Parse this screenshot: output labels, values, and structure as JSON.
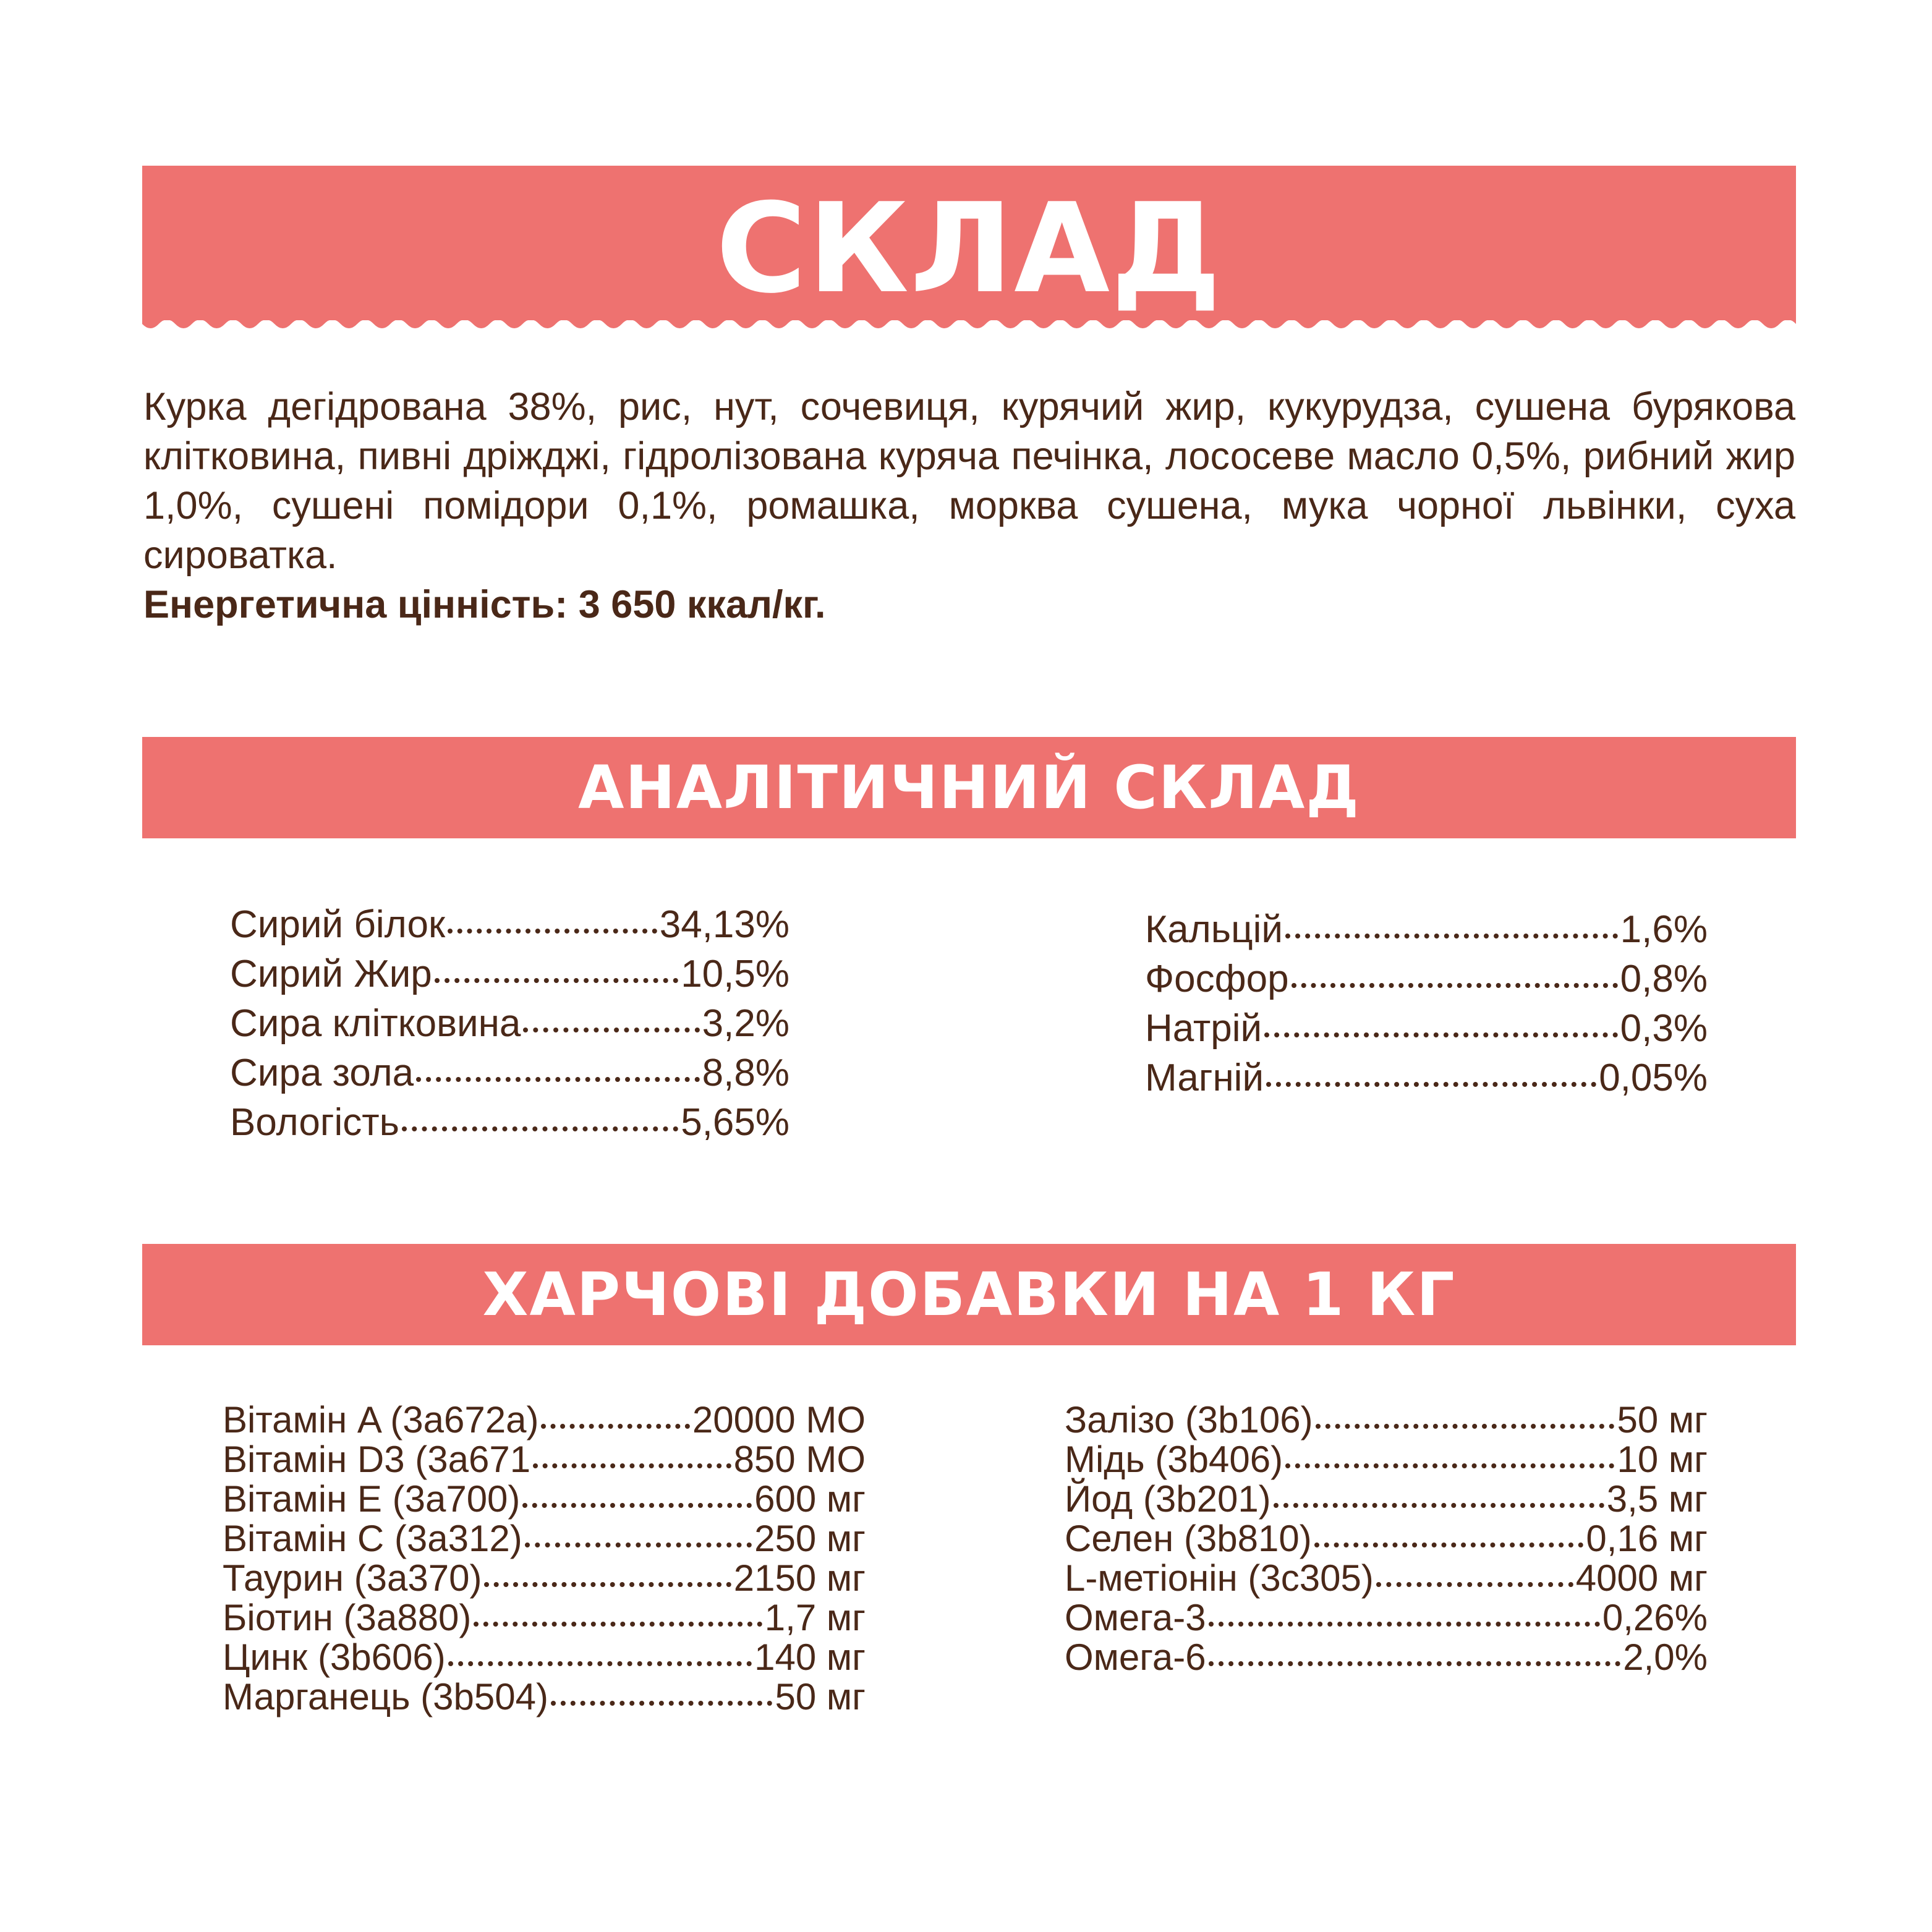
{
  "colors": {
    "accent": "#ee7270",
    "text": "#4a2818"
  },
  "composition": {
    "title": "СКЛАД",
    "ingredients": "Курка дегідрована 38%, рис, нут, сочевиця, курячий жир, кукурудза, сушена бурякова клітковина, пивні дріжджі, гідролізована куряча печінка, лососеве масло 0,5%, рибний жир 1,0%, сушені помідори 0,1%, ромашка, морква сушена, мука чорної львінки, суха сироватка.",
    "energy": "Енергетична цінність: 3 650 ккал/кг."
  },
  "analytical": {
    "title": "АНАЛІТИЧНИЙ СКЛАД",
    "left": [
      {
        "label": "Сирий білок",
        "value": "34,13%"
      },
      {
        "label": "Сирий Жир",
        "value": "10,5%"
      },
      {
        "label": "Сира клітковина",
        "value": "3,2%"
      },
      {
        "label": "Сира зола",
        "value": "8,8%"
      },
      {
        "label": "Вологість",
        "value": "5,65%"
      }
    ],
    "right": [
      {
        "label": "Кальцій",
        "value": "1,6%"
      },
      {
        "label": "Фосфор",
        "value": "0,8%"
      },
      {
        "label": "Натрій",
        "value": "0,3%"
      },
      {
        "label": "Магній",
        "value": "0,05%"
      }
    ]
  },
  "supplements": {
    "title": "ХАРЧОВІ ДОБАВКИ НА 1 КГ",
    "left": [
      {
        "label": "Вітамін A (3a672a)",
        "value": "20000 МО"
      },
      {
        "label": "Вітамін D3 (3a671",
        "value": "850 МО"
      },
      {
        "label": "Вітамін E (3a700)",
        "value": "600 мг"
      },
      {
        "label": "Вітамін C (3a312)",
        "value": "250 мг"
      },
      {
        "label": "Таурин (3a370)",
        "value": "2150 мг"
      },
      {
        "label": "Біотин (3a880)",
        "value": "1,7 мг"
      },
      {
        "label": "Цинк (3b606)",
        "value": "140 мг"
      },
      {
        "label": "Марганець (3b504)",
        "value": "50 мг"
      }
    ],
    "right": [
      {
        "label": "Залізо (3b106)",
        "value": "50 мг"
      },
      {
        "label": "Мідь (3b406)",
        "value": "10 мг"
      },
      {
        "label": "Йод (3b201)",
        "value": "3,5 мг"
      },
      {
        "label": "Селен (3b810)",
        "value": "0,16 мг"
      },
      {
        "label": "L-метіонін (3c305)",
        "value": "4000 мг"
      },
      {
        "label": "Омега-3",
        "value": "0,26%"
      },
      {
        "label": "Омега-6",
        "value": "2,0%"
      }
    ]
  }
}
